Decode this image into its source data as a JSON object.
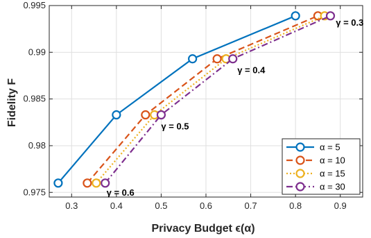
{
  "chart_data": {
    "type": "line",
    "xlabel": "Privacy Budget ϵ(α)",
    "ylabel": "Fidelity F",
    "xlim": [
      0.25,
      0.95
    ],
    "ylim": [
      0.9745,
      0.995
    ],
    "xticks": [
      0.3,
      0.4,
      0.5,
      0.6,
      0.7,
      0.8,
      0.9
    ],
    "xtick_labels": [
      "0.3",
      "0.4",
      "0.5",
      "0.6",
      "0.7",
      "0.8",
      "0.9"
    ],
    "yticks": [
      0.975,
      0.98,
      0.985,
      0.99,
      0.995
    ],
    "ytick_labels": [
      "0.975",
      "0.98",
      "0.985",
      "0.99",
      "0.995"
    ],
    "grid": true,
    "legend_position": "bottom-right",
    "series": [
      {
        "name": "α = 5",
        "color": "#0072BD",
        "dash": "solid",
        "x": [
          0.27,
          0.4,
          0.57,
          0.8
        ],
        "y": [
          0.976,
          0.9833,
          0.9893,
          0.9939
        ]
      },
      {
        "name": "α = 10",
        "color": "#D95319",
        "dash": "dashed",
        "x": [
          0.335,
          0.465,
          0.625,
          0.85
        ],
        "y": [
          0.976,
          0.9833,
          0.9893,
          0.9939
        ]
      },
      {
        "name": "α = 15",
        "color": "#EDB120",
        "dash": "dotted",
        "x": [
          0.355,
          0.485,
          0.645,
          0.865
        ],
        "y": [
          0.976,
          0.9833,
          0.9893,
          0.9939
        ]
      },
      {
        "name": "α = 30",
        "color": "#7E2F8E",
        "dash": "dashdot",
        "x": [
          0.375,
          0.5,
          0.66,
          0.878
        ],
        "y": [
          0.976,
          0.9833,
          0.9893,
          0.9939
        ]
      }
    ],
    "annotations": [
      {
        "text": "γ = 0.3",
        "x": 0.89,
        "y": 0.9936
      },
      {
        "text": "γ = 0.4",
        "x": 0.67,
        "y": 0.9885
      },
      {
        "text": "γ = 0.5",
        "x": 0.5,
        "y": 0.9825
      },
      {
        "text": "γ = 0.6",
        "x": 0.378,
        "y": 0.9754
      }
    ]
  }
}
